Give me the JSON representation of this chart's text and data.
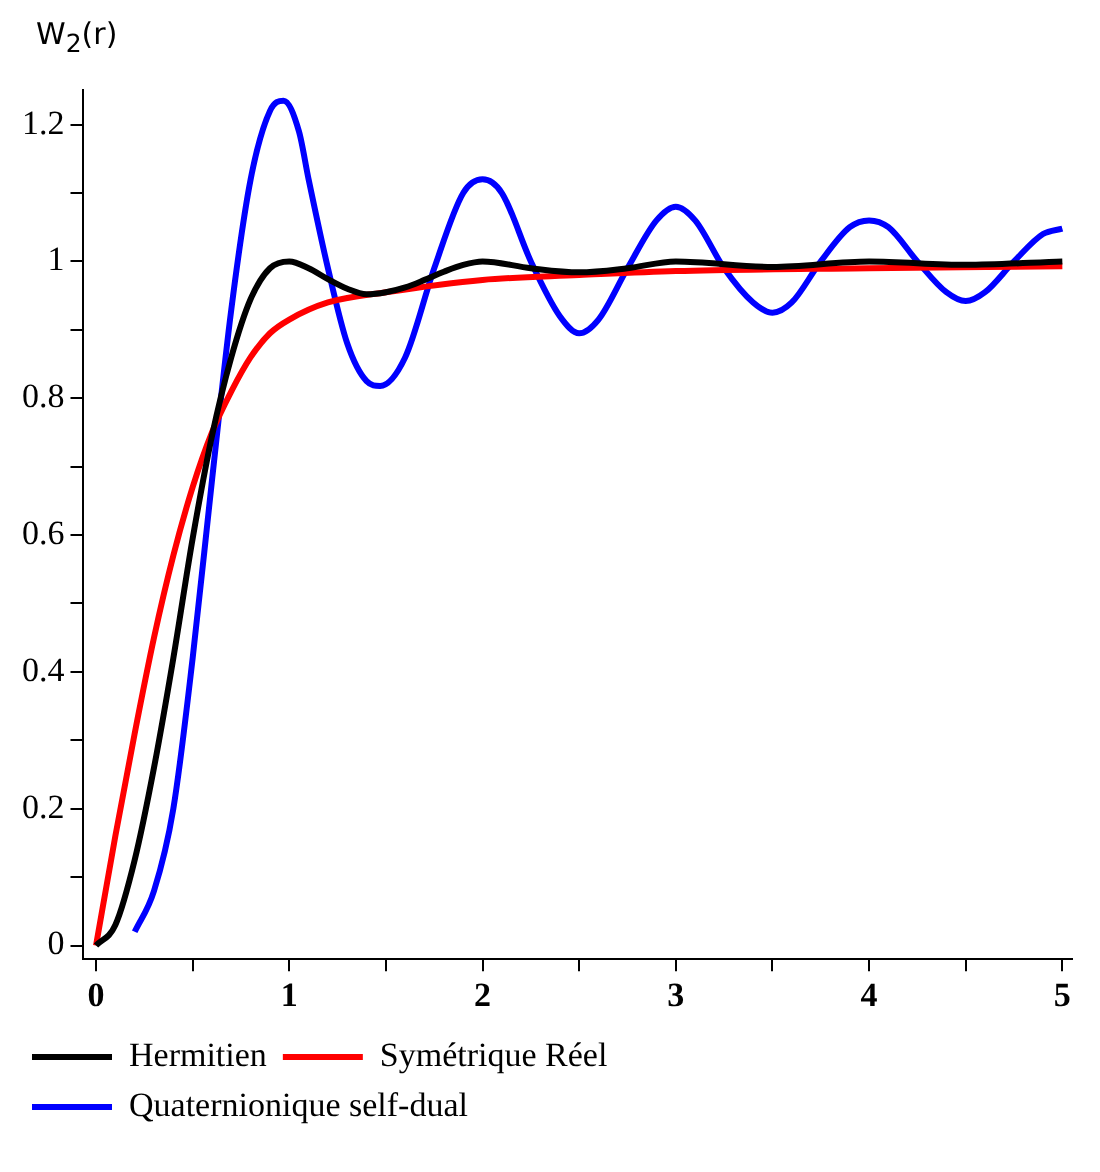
{
  "chart_data": {
    "type": "line",
    "ylabel": "W$_{2}$(r)",
    "xlim": [
      -0.07,
      5.05
    ],
    "ylim": [
      -0.02,
      1.25
    ],
    "xticks": [
      0,
      {
        "value": 0.5,
        "label": null
      },
      1,
      {
        "value": 1.5,
        "label": null
      },
      2,
      {
        "value": 2.5,
        "label": null
      },
      3,
      {
        "value": 3.5,
        "label": null
      },
      4,
      {
        "value": 4.5,
        "label": null
      },
      5
    ],
    "yticks": [
      0,
      {
        "value": 0.1,
        "label": null
      },
      0.2,
      {
        "value": 0.3,
        "label": null
      },
      0.4,
      {
        "value": 0.5,
        "label": null
      },
      0.6,
      {
        "value": 0.7,
        "label": null
      },
      0.8,
      {
        "value": 0.9,
        "label": null
      },
      1,
      {
        "value": 1.1,
        "label": null
      },
      1.2
    ],
    "grid": false,
    "legend": "bottom",
    "marker": "none",
    "line_style": "solid",
    "series": [
      {
        "name": "Hermitien",
        "color": "#000000",
        "x": [
          0,
          0.1,
          0.2,
          0.3,
          0.4,
          0.5,
          0.6,
          0.7,
          0.8,
          0.9,
          1,
          1.1,
          1.2,
          1.3,
          1.4,
          1.5,
          1.6,
          1.7,
          1.8,
          1.9,
          2,
          2.25,
          2.5,
          2.75,
          3,
          3.5,
          4,
          4.5,
          5
        ],
        "values": [
          0,
          0.03,
          0.125,
          0.26,
          0.42,
          0.595,
          0.745,
          0.86,
          0.945,
          0.99,
          1,
          0.99,
          0.974,
          0.96,
          0.952,
          0.955,
          0.962,
          0.973,
          0.985,
          0.995,
          1,
          0.99,
          0.984,
          0.99,
          1,
          0.992,
          1,
          0.995,
          1
        ]
      },
      {
        "name": "Symétrique Réel",
        "color": "#ff0000",
        "x": [
          0,
          0.1,
          0.2,
          0.3,
          0.4,
          0.5,
          0.6,
          0.7,
          0.8,
          0.9,
          1,
          1.2,
          1.5,
          2,
          2.5,
          3,
          4,
          5
        ],
        "values": [
          0,
          0.16,
          0.31,
          0.45,
          0.57,
          0.67,
          0.75,
          0.81,
          0.86,
          0.895,
          0.915,
          0.94,
          0.955,
          0.973,
          0.98,
          0.986,
          0.99,
          0.993
        ]
      },
      {
        "name": "Quaternionique self-dual",
        "color": "#0000ff",
        "x": [
          0.2,
          0.3,
          0.4,
          0.5,
          0.6,
          0.7,
          0.8,
          0.9,
          0.97,
          1.05,
          1.1,
          1.2,
          1.3,
          1.4,
          1.47,
          1.6,
          1.75,
          1.9,
          2,
          2.1,
          2.25,
          2.4,
          2.5,
          2.6,
          2.75,
          2.9,
          3,
          3.1,
          3.25,
          3.4,
          3.5,
          3.6,
          3.75,
          3.9,
          4,
          4.1,
          4.25,
          4.4,
          4.5,
          4.6,
          4.75,
          4.9,
          5
        ],
        "values": [
          0.02,
          0.08,
          0.2,
          0.42,
          0.68,
          0.93,
          1.12,
          1.22,
          1.235,
          1.19,
          1.12,
          0.99,
          0.88,
          0.825,
          0.818,
          0.86,
          0.99,
          1.1,
          1.12,
          1.1,
          1,
          0.92,
          0.895,
          0.915,
          0.99,
          1.06,
          1.08,
          1.06,
          0.99,
          0.94,
          0.925,
          0.94,
          1,
          1.05,
          1.06,
          1.05,
          1,
          0.955,
          0.942,
          0.955,
          1,
          1.04,
          1.048
        ]
      }
    ]
  }
}
